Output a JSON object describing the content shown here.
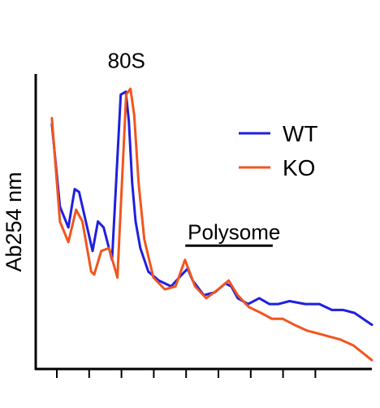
{
  "chart_data": {
    "type": "line",
    "title": "",
    "xlabel": "",
    "ylabel": "Ab254 nm",
    "grid": false,
    "legend": "top-right",
    "x_ticks_labeled": false,
    "x_tick_count": 9,
    "xlim": [
      0,
      100
    ],
    "ylim": [
      0,
      100
    ],
    "annotations": [
      {
        "text": "80S",
        "x": 27,
        "y": 102
      },
      {
        "text": "Polysome",
        "x": 59,
        "y": 44,
        "bar_x": [
          44.5,
          70.5
        ]
      }
    ],
    "series": [
      {
        "name": "WT",
        "color": "#1f1fe0",
        "x": [
          4.8,
          7.2,
          9.7,
          11.6,
          12.9,
          16.9,
          18.5,
          20.2,
          22.7,
          25.3,
          26.8,
          27.7,
          28.7,
          29.7,
          31.1,
          33.5,
          36.6,
          40.3,
          43.5,
          45.2,
          46.7,
          50.0,
          53.3,
          56.4,
          58.2,
          60.1,
          63.2,
          66.5,
          69.5,
          72.2,
          75.5,
          80.2,
          84.4,
          88.1,
          91.5,
          94.8,
          100
        ],
        "y": [
          83,
          55,
          48,
          61,
          60,
          40,
          50,
          48,
          37,
          93,
          94,
          84,
          63,
          50,
          41,
          33,
          30,
          28,
          32,
          34,
          30,
          25,
          26,
          29,
          28,
          24,
          22,
          24,
          22,
          22,
          23,
          22,
          22,
          20,
          20,
          19,
          15
        ]
      },
      {
        "name": "KO",
        "color": "#f2551e",
        "x": [
          4.8,
          7.2,
          9.7,
          12.0,
          13.9,
          16.5,
          17.4,
          19.5,
          21.8,
          24.3,
          26.9,
          28.2,
          29.3,
          30.6,
          32.3,
          35.0,
          38.4,
          41.6,
          44.4,
          47.4,
          50.7,
          54.3,
          57.4,
          60.1,
          63.4,
          67.0,
          70.3,
          73.5,
          76.9,
          80.7,
          84.1,
          87.3,
          90.6,
          94.5,
          100
        ],
        "y": [
          85,
          50,
          43,
          54,
          50,
          33,
          32,
          40,
          41,
          31,
          93,
          95,
          86,
          63,
          44,
          31,
          27,
          28,
          37,
          28,
          24,
          27,
          30,
          25,
          21,
          19,
          17,
          17,
          15,
          13,
          12,
          11,
          10,
          8,
          3
        ]
      }
    ]
  }
}
